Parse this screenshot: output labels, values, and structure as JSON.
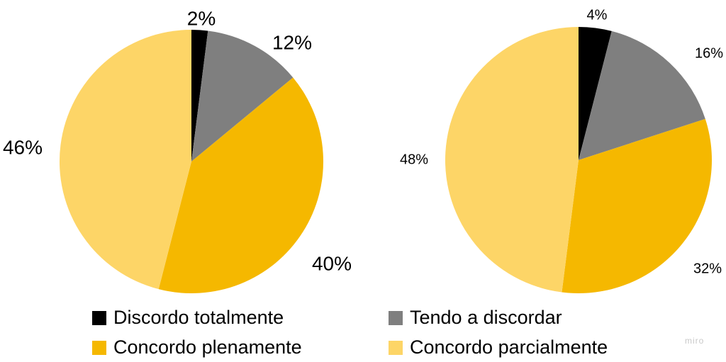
{
  "chart_data": [
    {
      "type": "pie",
      "categories": [
        "Discordo totalmente",
        "Tendo a discordar",
        "Concordo plenamente",
        "Concordo parcialmente"
      ],
      "values": [
        2,
        12,
        40,
        46
      ],
      "labels": [
        "2%",
        "12%",
        "40%",
        "46%"
      ],
      "start_angle": "12 o'clock",
      "direction": "clockwise"
    },
    {
      "type": "pie",
      "categories": [
        "Discordo totalmente",
        "Tendo a discordar",
        "Concordo plenamente",
        "Concordo parcialmente"
      ],
      "values": [
        4,
        16,
        32,
        48
      ],
      "labels": [
        "4%",
        "16%",
        "32%",
        "48%"
      ],
      "start_angle": "12 o'clock",
      "direction": "clockwise"
    }
  ],
  "colors": [
    "#000000",
    "#7f7f7f",
    "#f5b800",
    "#fdd567"
  ],
  "legend": {
    "placement": "bottom",
    "items": [
      {
        "label": "Discordo totalmente",
        "color": "#000000"
      },
      {
        "label": "Tendo a discordar",
        "color": "#7f7f7f"
      },
      {
        "label": "Concordo plenamente",
        "color": "#f5b800"
      },
      {
        "label": "Concordo parcialmente",
        "color": "#fdd567"
      }
    ]
  },
  "watermark": "miro"
}
